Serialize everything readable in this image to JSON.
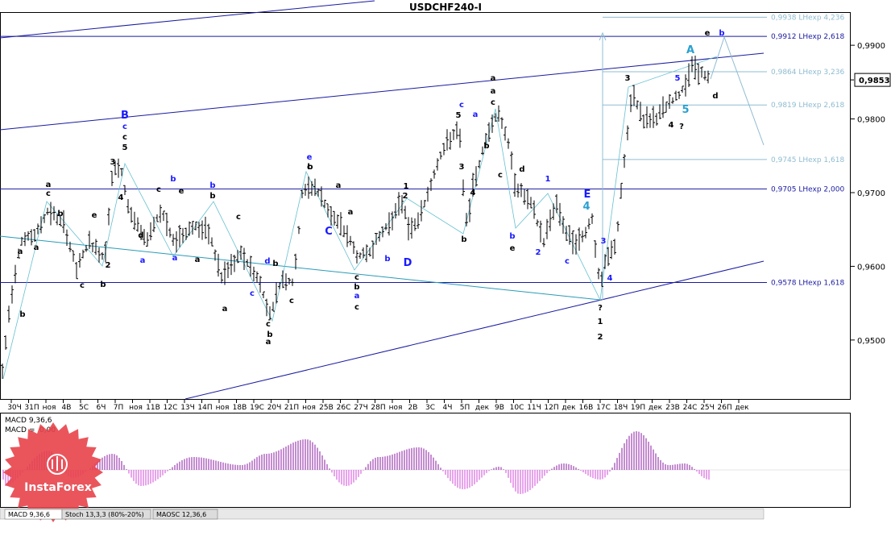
{
  "chart_data": {
    "type": "ohlc",
    "title": "USDCHF240-I",
    "symbol": "USDCHF",
    "timeframe": "H4",
    "current_price": "0,9853",
    "ylim": [
      0.942,
      0.9945
    ],
    "y_ticks": [
      "0,9900",
      "0,9800",
      "0,9700",
      "0,9600",
      "0,9500"
    ],
    "x_ticks": [
      "30Ч",
      "31П",
      "ноя",
      "4В",
      "5С",
      "6Ч",
      "7П",
      "ноя",
      "11В",
      "12С",
      "13Ч",
      "14П",
      "ноя",
      "18В",
      "19С",
      "20Ч",
      "21П",
      "ноя",
      "25В",
      "26С",
      "27Ч",
      "28П",
      "ноя",
      "2В",
      "3С",
      "4Ч",
      "5П",
      "дек",
      "9В",
      "10С",
      "11Ч",
      "12П",
      "дек",
      "16В",
      "17С",
      "18Ч",
      "19П",
      "дек",
      "23В",
      "24С",
      "25Ч",
      "26П",
      "дек"
    ],
    "fib_levels": [
      {
        "label": "0,9938 LHexp 4,236",
        "value": 0.9938,
        "color": "#8fbcd0",
        "style": "line"
      },
      {
        "label": "0,9912 LHexp 2,618",
        "value": 0.9912,
        "color": "#1a1aa0",
        "style": "line"
      },
      {
        "label": "0,9864 LHexp 3,236",
        "value": 0.9864,
        "color": "#8fbcd0",
        "style": "line"
      },
      {
        "label": "0,9819 LHexp 2,618",
        "value": 0.9819,
        "color": "#8fbcd0",
        "style": "line"
      },
      {
        "label": "0,9745 LHexp 1,618",
        "value": 0.9745,
        "color": "#8fbcd0",
        "style": "line"
      },
      {
        "label": "0,9705 LHexp 2,000",
        "value": 0.9705,
        "color": "#1a1aa0",
        "style": "line"
      },
      {
        "label": "0,9578 LHexp 1,618",
        "value": 0.9578,
        "color": "#1a1aa0",
        "style": "line"
      }
    ],
    "wave_labels": [
      {
        "text": "B",
        "color": "#1a1aff",
        "size": "big"
      },
      {
        "text": "c",
        "color": "#1a1aff"
      },
      {
        "text": "c",
        "color": "#000"
      },
      {
        "text": "5",
        "color": "#000"
      },
      {
        "text": "3",
        "color": "#000"
      },
      {
        "text": "4",
        "color": "#000"
      },
      {
        "text": "a",
        "color": "#000"
      },
      {
        "text": "c",
        "color": "#000"
      },
      {
        "text": "b",
        "color": "#000"
      },
      {
        "text": "a",
        "color": "#000"
      },
      {
        "text": "b",
        "color": "#000"
      },
      {
        "text": "a",
        "color": "#000"
      },
      {
        "text": "2",
        "color": "#000"
      },
      {
        "text": "b",
        "color": "#000"
      },
      {
        "text": "c",
        "color": "#000"
      },
      {
        "text": "d",
        "color": "#000"
      },
      {
        "text": "e",
        "color": "#000"
      },
      {
        "text": "b",
        "color": "#1a1aff"
      },
      {
        "text": "a",
        "color": "#1a1aff"
      },
      {
        "text": "a",
        "color": "#1a1aff"
      },
      {
        "text": "c",
        "color": "#000"
      },
      {
        "text": "b",
        "color": "#1a1aff"
      },
      {
        "text": "e",
        "color": "#000"
      },
      {
        "text": "b",
        "color": "#000"
      },
      {
        "text": "a",
        "color": "#000"
      },
      {
        "text": "a",
        "color": "#000"
      },
      {
        "text": "c",
        "color": "#000"
      },
      {
        "text": "c",
        "color": "#1a1aff"
      },
      {
        "text": "d",
        "color": "#1a1aff"
      },
      {
        "text": "c",
        "color": "#000"
      },
      {
        "text": "b",
        "color": "#000"
      },
      {
        "text": "a",
        "color": "#000"
      },
      {
        "text": "b",
        "color": "#000"
      },
      {
        "text": "c",
        "color": "#000"
      },
      {
        "text": "e",
        "color": "#1a1aff"
      },
      {
        "text": "c",
        "color": "#000"
      },
      {
        "text": "C",
        "color": "#1a1aff",
        "size": "big"
      },
      {
        "text": "b",
        "color": "#000"
      },
      {
        "text": "a",
        "color": "#000"
      },
      {
        "text": "a",
        "color": "#000"
      },
      {
        "text": "c",
        "color": "#000"
      },
      {
        "text": "b",
        "color": "#000"
      },
      {
        "text": "a",
        "color": "#1a1aff"
      },
      {
        "text": "c",
        "color": "#000"
      },
      {
        "text": "1",
        "color": "#000"
      },
      {
        "text": "2",
        "color": "#000"
      },
      {
        "text": "b",
        "color": "#1a1aff"
      },
      {
        "text": "D",
        "color": "#1a1aff",
        "size": "big"
      },
      {
        "text": "c",
        "color": "#1a1aff"
      },
      {
        "text": "5",
        "color": "#000"
      },
      {
        "text": "3",
        "color": "#000"
      },
      {
        "text": "4",
        "color": "#000"
      },
      {
        "text": "b",
        "color": "#000"
      },
      {
        "text": "a",
        "color": "#000"
      },
      {
        "text": "a",
        "color": "#000"
      },
      {
        "text": "c",
        "color": "#000"
      },
      {
        "text": "a",
        "color": "#1a1aff"
      },
      {
        "text": "b",
        "color": "#000"
      },
      {
        "text": "c",
        "color": "#000"
      },
      {
        "text": "d",
        "color": "#000"
      },
      {
        "text": "b",
        "color": "#1a1aff"
      },
      {
        "text": "e",
        "color": "#000"
      },
      {
        "text": "1",
        "color": "#1a1aff"
      },
      {
        "text": "2",
        "color": "#1a1aff"
      },
      {
        "text": "c",
        "color": "#1a1aff"
      },
      {
        "text": "E",
        "color": "#1a1aff",
        "size": "big"
      },
      {
        "text": "4",
        "color": "#2aa0d0",
        "size": "big"
      },
      {
        "text": "3",
        "color": "#1a1aff"
      },
      {
        "text": "4",
        "color": "#1a1aff"
      },
      {
        "text": "?",
        "color": "#000"
      },
      {
        "text": "1",
        "color": "#000"
      },
      {
        "text": "2",
        "color": "#000"
      },
      {
        "text": "3",
        "color": "#000"
      },
      {
        "text": "4",
        "color": "#000"
      },
      {
        "text": "?",
        "color": "#000"
      },
      {
        "text": "5",
        "color": "#1a1aff"
      },
      {
        "text": "5",
        "color": "#2aa0d0",
        "size": "big"
      },
      {
        "text": "A",
        "color": "#2aa0d0",
        "size": "big"
      },
      {
        "text": "d",
        "color": "#000"
      },
      {
        "text": "e",
        "color": "#000"
      },
      {
        "text": "b",
        "color": "#1a1aff"
      }
    ],
    "macd": {
      "title": "MACD 9,36,6",
      "value_label": "MACD =",
      "value": "0,00",
      "ylim": [
        -1,
        1
      ]
    },
    "indicator_tabs": [
      "MACD 9,36,6",
      "Stoch 13,3,3 (80%-20%)",
      "MAOSC 12,36,6"
    ],
    "watermark": "InstaForex"
  },
  "colors": {
    "channel": "#1a1aa0",
    "fib_light": "#8fbcd0",
    "zigzag": "#66c0d0",
    "histogram_pos": "#8a1aa0",
    "histogram_neg": "#d04ad8",
    "watermark": "#e8424a"
  }
}
